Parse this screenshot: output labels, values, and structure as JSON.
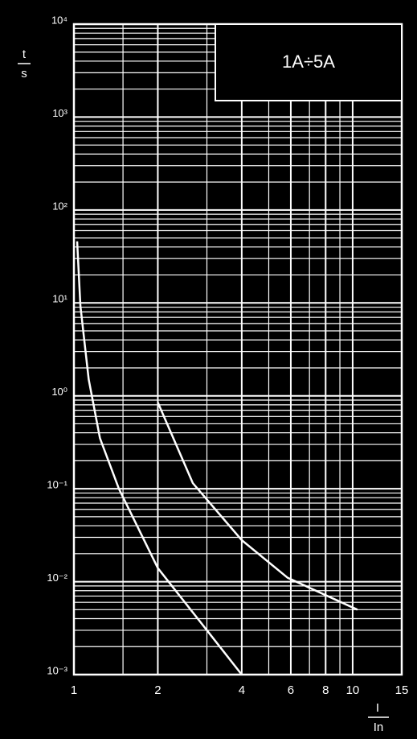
{
  "chart_data": {
    "type": "line",
    "annotation": "1A÷5A",
    "ylabel_numerator": "t",
    "ylabel_denominator": "s",
    "xlabel_numerator": "I",
    "xlabel_denominator": "In",
    "xscale": "log",
    "yscale": "log",
    "grid": true,
    "xlim": [
      1,
      15
    ],
    "xticks": [
      1,
      2,
      4,
      6,
      8,
      10,
      15
    ],
    "ylim": [
      0.001,
      10000
    ],
    "yticks": [
      {
        "value": 10000,
        "label": "10⁴"
      },
      {
        "value": 1000,
        "label": "10³"
      },
      {
        "value": 100,
        "label": "10²"
      },
      {
        "value": 10,
        "label": "10¹"
      },
      {
        "value": 1,
        "label": "10⁰"
      },
      {
        "value": 0.1,
        "label": "10⁻¹"
      },
      {
        "value": 0.01,
        "label": "10⁻²"
      },
      {
        "value": 0.001,
        "label": "10⁻³"
      }
    ],
    "series": [
      {
        "color": "#ffffff",
        "x": [
          1.027,
          1.055,
          1.13,
          1.24,
          1.45,
          2,
          3,
          4
        ],
        "values": [
          46,
          9.3,
          1.5,
          0.35,
          0.1,
          0.014,
          0.003,
          0.001
        ]
      },
      {
        "color": "#ffffff",
        "x": [
          2,
          2.67,
          4,
          5.85,
          10.4
        ],
        "values": [
          0.85,
          0.115,
          0.028,
          0.011,
          0.005
        ]
      }
    ]
  }
}
